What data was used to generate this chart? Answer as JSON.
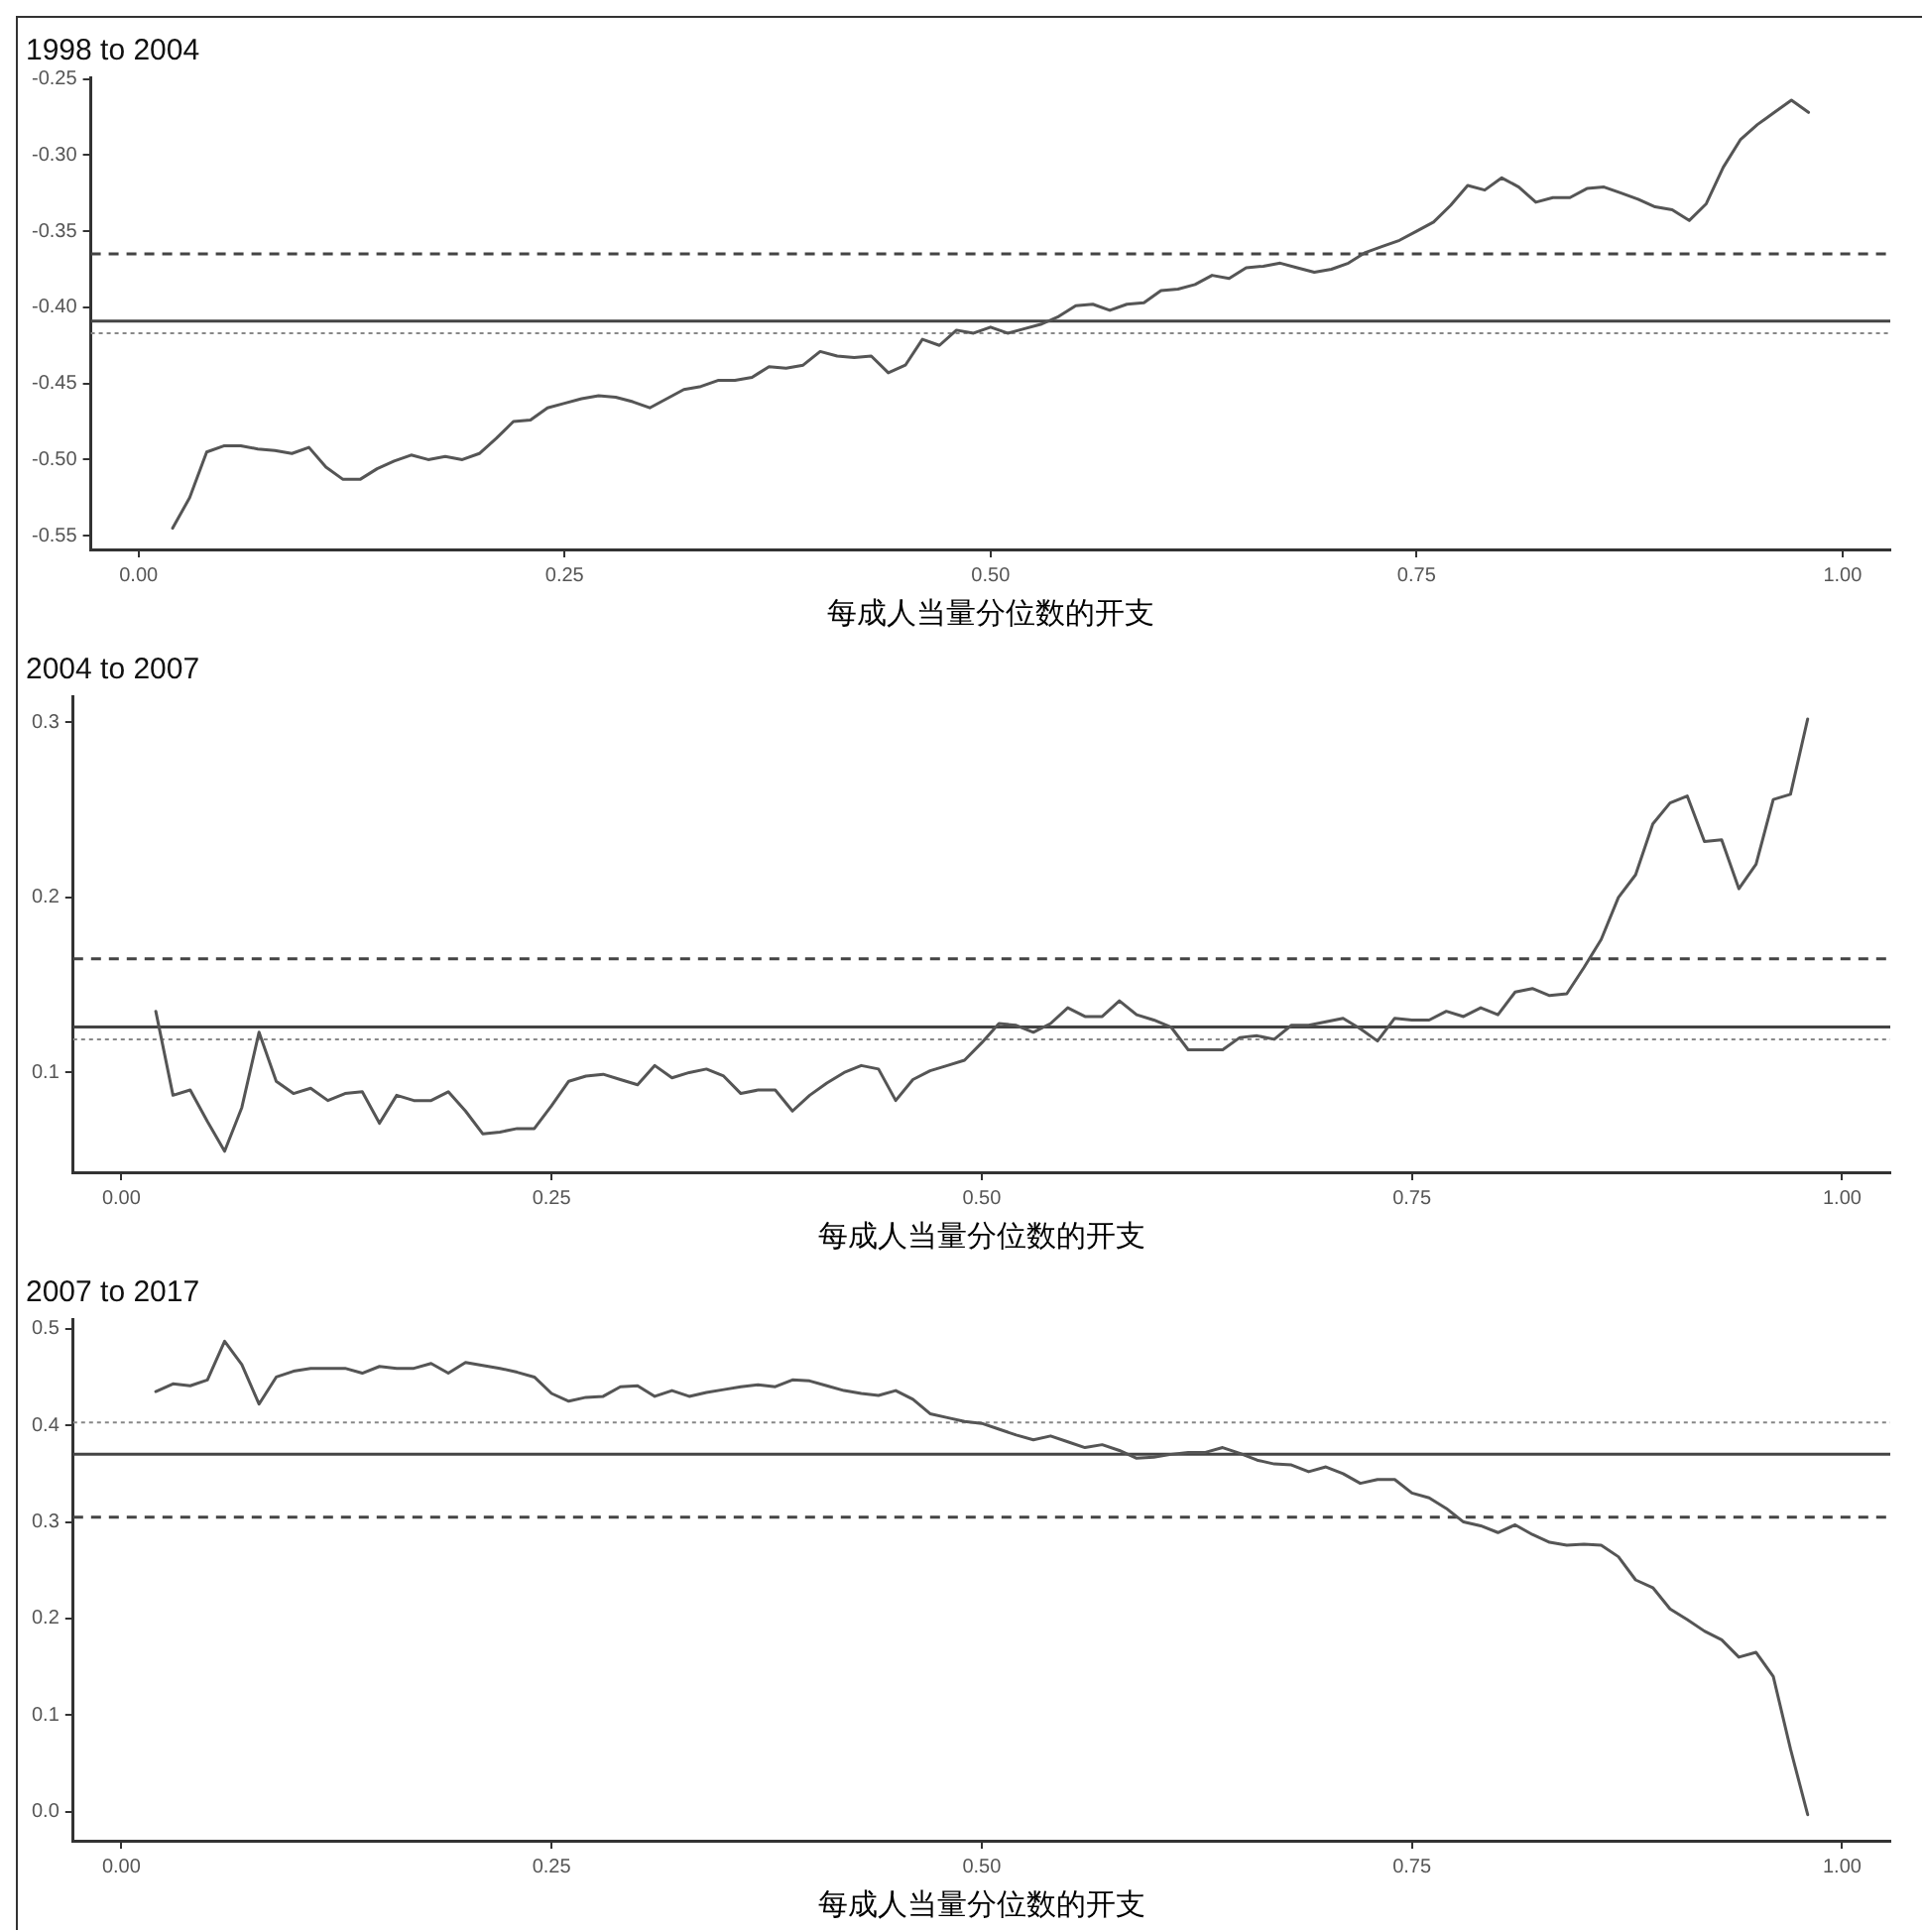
{
  "chart_data": [
    {
      "type": "line",
      "title": "1998 to 2004",
      "xlabel": "每成人当量分位数的开支",
      "xlim": [
        -0.028,
        1.028
      ],
      "ylim": [
        -0.559,
        -0.249
      ],
      "xticks": [
        {
          "value": 0,
          "label": "0.00"
        },
        {
          "value": 0.25,
          "label": "0.25"
        },
        {
          "value": 0.5,
          "label": "0.50"
        },
        {
          "value": 0.75,
          "label": "0.75"
        },
        {
          "value": 1,
          "label": "1.00"
        }
      ],
      "yticks": [
        {
          "value": -0.55,
          "label": "-0.55"
        },
        {
          "value": -0.5,
          "label": "-0.50"
        },
        {
          "value": -0.45,
          "label": "-0.45"
        },
        {
          "value": -0.4,
          "label": "-0.40"
        },
        {
          "value": -0.35,
          "label": "-0.35"
        },
        {
          "value": -0.3,
          "label": "-0.30"
        },
        {
          "value": -0.25,
          "label": "-0.25"
        }
      ],
      "ref_lines": [
        {
          "axis": "y",
          "value": -0.365,
          "line_style": "dashed",
          "color": "#444444"
        },
        {
          "axis": "y",
          "value": -0.409,
          "line_style": "solid",
          "color": "#444444"
        },
        {
          "axis": "y",
          "value": -0.417,
          "line_style": "dotted",
          "color": "#888888"
        }
      ],
      "x": [
        0.02,
        0.03,
        0.04,
        0.05,
        0.06,
        0.07,
        0.08,
        0.09,
        0.1,
        0.11,
        0.12,
        0.13,
        0.14,
        0.15,
        0.16,
        0.17,
        0.18,
        0.19,
        0.2,
        0.21,
        0.22,
        0.23,
        0.24,
        0.25,
        0.26,
        0.27,
        0.28,
        0.29,
        0.3,
        0.31,
        0.32,
        0.33,
        0.34,
        0.35,
        0.36,
        0.37,
        0.38,
        0.39,
        0.4,
        0.41,
        0.42,
        0.43,
        0.44,
        0.45,
        0.46,
        0.47,
        0.48,
        0.49,
        0.5,
        0.51,
        0.52,
        0.53,
        0.54,
        0.55,
        0.56,
        0.57,
        0.58,
        0.59,
        0.6,
        0.61,
        0.62,
        0.63,
        0.64,
        0.65,
        0.66,
        0.67,
        0.68,
        0.69,
        0.7,
        0.71,
        0.72,
        0.73,
        0.74,
        0.75,
        0.76,
        0.77,
        0.78,
        0.79,
        0.8,
        0.81,
        0.82,
        0.83,
        0.84,
        0.85,
        0.86,
        0.87,
        0.88,
        0.89,
        0.9,
        0.91,
        0.92,
        0.93,
        0.94,
        0.95,
        0.96,
        0.97,
        0.98
      ],
      "series": [
        {
          "color": "#555555",
          "values": [
            -0.545,
            -0.525,
            -0.495,
            -0.491,
            -0.491,
            -0.493,
            -0.494,
            -0.496,
            -0.492,
            -0.505,
            -0.513,
            -0.513,
            -0.506,
            -0.501,
            -0.497,
            -0.5,
            -0.498,
            -0.5,
            -0.496,
            -0.486,
            -0.475,
            -0.474,
            -0.466,
            -0.463,
            -0.46,
            -0.458,
            -0.459,
            -0.462,
            -0.466,
            -0.46,
            -0.454,
            -0.452,
            -0.448,
            -0.448,
            -0.446,
            -0.439,
            -0.44,
            -0.438,
            -0.429,
            -0.432,
            -0.433,
            -0.432,
            -0.443,
            -0.438,
            -0.421,
            -0.425,
            -0.415,
            -0.417,
            -0.413,
            -0.417,
            -0.414,
            -0.411,
            -0.406,
            -0.399,
            -0.398,
            -0.402,
            -0.398,
            -0.397,
            -0.389,
            -0.388,
            -0.385,
            -0.379,
            -0.381,
            -0.374,
            -0.373,
            -0.371,
            -0.374,
            -0.377,
            -0.375,
            -0.371,
            -0.364,
            -0.36,
            -0.356,
            -0.35,
            -0.344,
            -0.333,
            -0.32,
            -0.323,
            -0.315,
            -0.321,
            -0.331,
            -0.328,
            -0.328,
            -0.322,
            -0.321,
            -0.325,
            -0.329,
            -0.334,
            -0.336,
            -0.343,
            -0.332,
            -0.308,
            -0.29,
            -0.28,
            -0.272,
            -0.264,
            -0.272
          ]
        }
      ]
    },
    {
      "type": "line",
      "title": "2004 to 2007",
      "xlabel": "每成人当量分位数的开支",
      "xlim": [
        -0.028,
        1.028
      ],
      "ylim": [
        0.043,
        0.315
      ],
      "xticks": [
        {
          "value": 0,
          "label": "0.00"
        },
        {
          "value": 0.25,
          "label": "0.25"
        },
        {
          "value": 0.5,
          "label": "0.50"
        },
        {
          "value": 0.75,
          "label": "0.75"
        },
        {
          "value": 1,
          "label": "1.00"
        }
      ],
      "yticks": [
        0.1,
        0.2,
        0.3
      ],
      "ref_lines": [
        {
          "axis": "y",
          "value": 0.165,
          "line_style": "dashed",
          "color": "#444444"
        },
        {
          "axis": "y",
          "value": 0.126,
          "line_style": "solid",
          "color": "#444444"
        },
        {
          "axis": "y",
          "value": 0.119,
          "line_style": "dotted",
          "color": "#888888"
        }
      ],
      "x": [
        0.02,
        0.03,
        0.04,
        0.05,
        0.06,
        0.07,
        0.08,
        0.09,
        0.1,
        0.11,
        0.12,
        0.13,
        0.14,
        0.15,
        0.16,
        0.17,
        0.18,
        0.19,
        0.2,
        0.21,
        0.22,
        0.23,
        0.24,
        0.25,
        0.26,
        0.27,
        0.28,
        0.29,
        0.3,
        0.31,
        0.32,
        0.33,
        0.34,
        0.35,
        0.36,
        0.37,
        0.38,
        0.39,
        0.4,
        0.41,
        0.42,
        0.43,
        0.44,
        0.45,
        0.46,
        0.47,
        0.48,
        0.49,
        0.5,
        0.51,
        0.52,
        0.53,
        0.54,
        0.55,
        0.56,
        0.57,
        0.58,
        0.59,
        0.6,
        0.61,
        0.62,
        0.63,
        0.64,
        0.65,
        0.66,
        0.67,
        0.68,
        0.69,
        0.7,
        0.71,
        0.72,
        0.73,
        0.74,
        0.75,
        0.76,
        0.77,
        0.78,
        0.79,
        0.8,
        0.81,
        0.82,
        0.83,
        0.84,
        0.85,
        0.86,
        0.87,
        0.88,
        0.89,
        0.9,
        0.91,
        0.92,
        0.93,
        0.94,
        0.95,
        0.96,
        0.97,
        0.98
      ],
      "series": [
        {
          "color": "#555555",
          "values": [
            0.135,
            0.087,
            0.09,
            0.072,
            0.055,
            0.08,
            0.123,
            0.095,
            0.088,
            0.091,
            0.084,
            0.088,
            0.089,
            0.071,
            0.087,
            0.084,
            0.084,
            0.089,
            0.078,
            0.065,
            0.066,
            0.068,
            0.068,
            0.081,
            0.095,
            0.098,
            0.099,
            0.096,
            0.093,
            0.104,
            0.097,
            0.1,
            0.102,
            0.098,
            0.088,
            0.09,
            0.09,
            0.078,
            0.087,
            0.094,
            0.1,
            0.104,
            0.102,
            0.084,
            0.096,
            0.101,
            0.104,
            0.107,
            0.117,
            0.128,
            0.127,
            0.123,
            0.128,
            0.137,
            0.132,
            0.132,
            0.141,
            0.133,
            0.13,
            0.126,
            0.113,
            0.113,
            0.113,
            0.12,
            0.121,
            0.119,
            0.127,
            0.127,
            0.129,
            0.131,
            0.125,
            0.118,
            0.131,
            0.13,
            0.13,
            0.135,
            0.132,
            0.137,
            0.133,
            0.146,
            0.148,
            0.144,
            0.145,
            0.16,
            0.176,
            0.2,
            0.213,
            0.242,
            0.254,
            0.258,
            0.232,
            0.233,
            0.205,
            0.219,
            0.256,
            0.259,
            0.302
          ]
        }
      ]
    },
    {
      "type": "line",
      "title": "2007 to 2017",
      "xlabel": "每成人当量分位数的开支",
      "xlim": [
        -0.028,
        1.028
      ],
      "ylim": [
        -0.03,
        0.51
      ],
      "xticks": [
        {
          "value": 0,
          "label": "0.00"
        },
        {
          "value": 0.25,
          "label": "0.25"
        },
        {
          "value": 0.5,
          "label": "0.50"
        },
        {
          "value": 0.75,
          "label": "0.75"
        },
        {
          "value": 1,
          "label": "1.00"
        }
      ],
      "yticks": [
        {
          "value": 0,
          "label": "0.0"
        },
        0.1,
        0.2,
        0.3,
        0.4,
        0.5
      ],
      "ref_lines": [
        {
          "axis": "y",
          "value": 0.403,
          "line_style": "dotted",
          "color": "#888888"
        },
        {
          "axis": "y",
          "value": 0.37,
          "line_style": "solid",
          "color": "#444444"
        },
        {
          "axis": "y",
          "value": 0.305,
          "line_style": "dashed",
          "color": "#444444"
        }
      ],
      "x": [
        0.02,
        0.03,
        0.04,
        0.05,
        0.06,
        0.07,
        0.08,
        0.09,
        0.1,
        0.11,
        0.12,
        0.13,
        0.14,
        0.15,
        0.16,
        0.17,
        0.18,
        0.19,
        0.2,
        0.21,
        0.22,
        0.23,
        0.24,
        0.25,
        0.26,
        0.27,
        0.28,
        0.29,
        0.3,
        0.31,
        0.32,
        0.33,
        0.34,
        0.35,
        0.36,
        0.37,
        0.38,
        0.39,
        0.4,
        0.41,
        0.42,
        0.43,
        0.44,
        0.45,
        0.46,
        0.47,
        0.48,
        0.49,
        0.5,
        0.51,
        0.52,
        0.53,
        0.54,
        0.55,
        0.56,
        0.57,
        0.58,
        0.59,
        0.6,
        0.61,
        0.62,
        0.63,
        0.64,
        0.65,
        0.66,
        0.67,
        0.68,
        0.69,
        0.7,
        0.71,
        0.72,
        0.73,
        0.74,
        0.75,
        0.76,
        0.77,
        0.78,
        0.79,
        0.8,
        0.81,
        0.82,
        0.83,
        0.84,
        0.85,
        0.86,
        0.87,
        0.88,
        0.89,
        0.9,
        0.91,
        0.92,
        0.93,
        0.94,
        0.95,
        0.96,
        0.97,
        0.98
      ],
      "series": [
        {
          "color": "#555555",
          "values": [
            0.435,
            0.443,
            0.441,
            0.447,
            0.487,
            0.463,
            0.422,
            0.45,
            0.456,
            0.459,
            0.459,
            0.459,
            0.454,
            0.461,
            0.459,
            0.459,
            0.464,
            0.454,
            0.465,
            0.462,
            0.459,
            0.455,
            0.45,
            0.433,
            0.425,
            0.429,
            0.43,
            0.44,
            0.441,
            0.43,
            0.436,
            0.43,
            0.434,
            0.437,
            0.44,
            0.442,
            0.44,
            0.447,
            0.446,
            0.441,
            0.436,
            0.433,
            0.431,
            0.436,
            0.427,
            0.412,
            0.408,
            0.404,
            0.402,
            0.396,
            0.39,
            0.385,
            0.389,
            0.383,
            0.377,
            0.38,
            0.374,
            0.366,
            0.367,
            0.37,
            0.372,
            0.372,
            0.377,
            0.371,
            0.364,
            0.36,
            0.359,
            0.352,
            0.357,
            0.35,
            0.34,
            0.344,
            0.344,
            0.33,
            0.325,
            0.314,
            0.3,
            0.296,
            0.289,
            0.297,
            0.287,
            0.279,
            0.276,
            0.277,
            0.276,
            0.264,
            0.24,
            0.232,
            0.21,
            0.199,
            0.187,
            0.178,
            0.16,
            0.165,
            0.14,
            0.065,
            -0.003
          ]
        }
      ]
    }
  ]
}
